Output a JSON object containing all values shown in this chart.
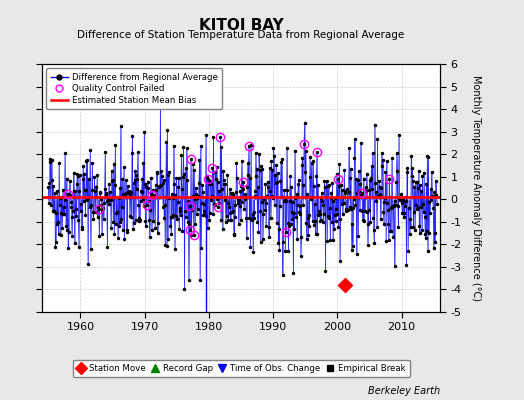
{
  "title": "KITOI BAY",
  "subtitle": "Difference of Station Temperature Data from Regional Average",
  "ylabel": "Monthly Temperature Anomaly Difference (°C)",
  "xlim": [
    1954,
    2016
  ],
  "ylim": [
    -5,
    6
  ],
  "yticks": [
    -5,
    -4,
    -3,
    -2,
    -1,
    0,
    1,
    2,
    3,
    4,
    5,
    6
  ],
  "xticks": [
    1960,
    1970,
    1980,
    1990,
    2000,
    2010
  ],
  "mean_bias": 0.1,
  "line_color": "#0000FF",
  "marker_color": "#000000",
  "bias_color": "#FF0000",
  "qc_color": "#FF00FF",
  "obs_change_year": 1979.5,
  "station_move_year": 2001.2,
  "plot_bg": "#FFFFFF",
  "fig_bg": "#E8E8E8",
  "grid_color": "#D0D0D0",
  "footer": "Berkeley Earth",
  "seed": 42,
  "start_year": 1955.0,
  "end_year": 2015.5,
  "n_qc": 20
}
